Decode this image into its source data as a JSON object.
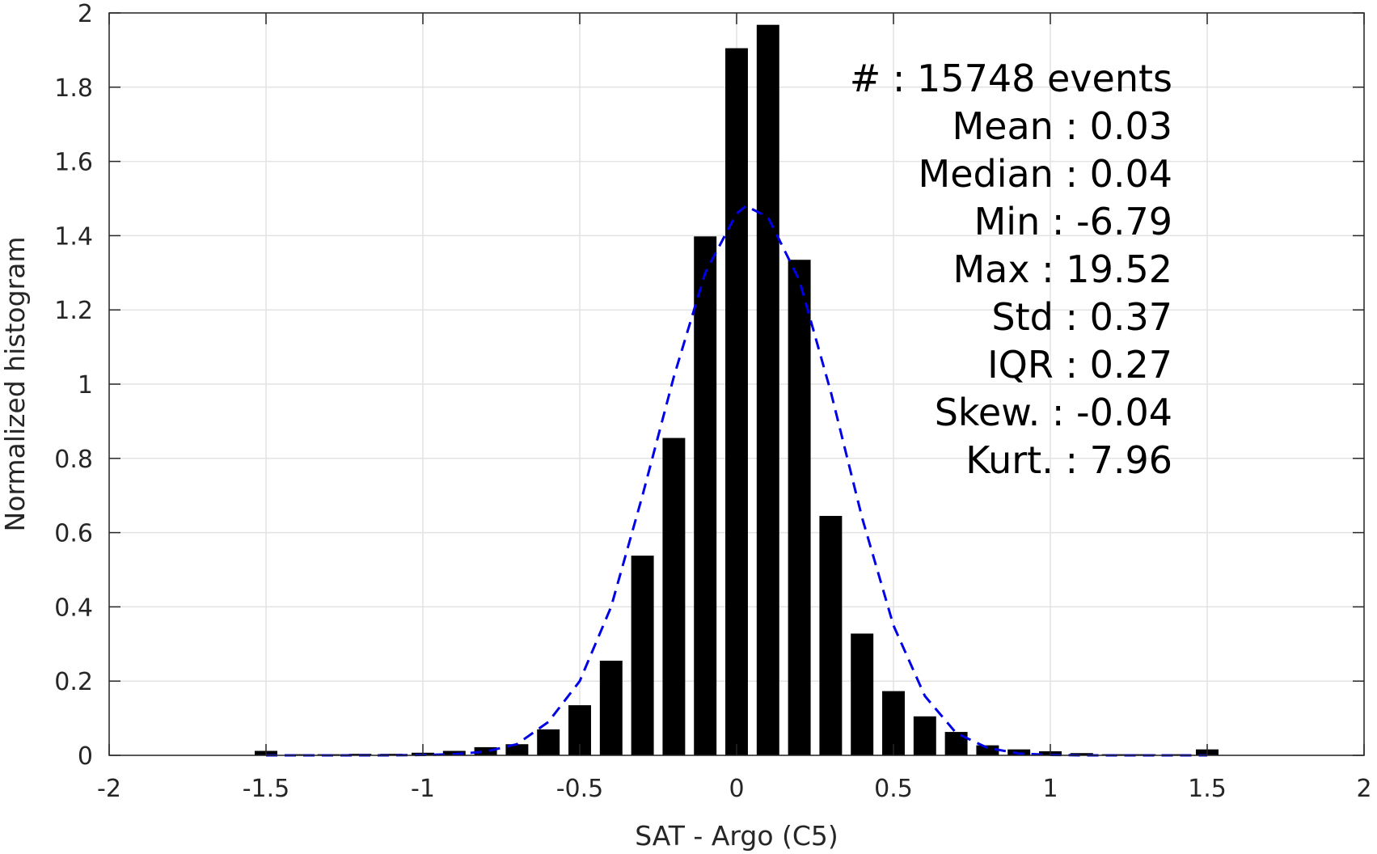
{
  "chart_data": {
    "type": "bar",
    "title": "",
    "xlabel": "SAT - Argo (C5)",
    "ylabel": "Normalized histogram",
    "xlim": [
      -2,
      2
    ],
    "ylim": [
      0,
      2
    ],
    "grid": true,
    "x_ticks": [
      "-2",
      "-1.5",
      "-1",
      "-0.5",
      "0",
      "0.5",
      "1",
      "1.5",
      "2"
    ],
    "y_ticks": [
      "0",
      "0.2",
      "0.4",
      "0.6",
      "0.8",
      "1",
      "1.2",
      "1.4",
      "1.6",
      "1.8",
      "2"
    ],
    "bar_color": "#000000",
    "bins": {
      "x": [
        -1.5,
        -1.4,
        -1.3,
        -1.2,
        -1.1,
        -1.0,
        -0.9,
        -0.8,
        -0.7,
        -0.6,
        -0.5,
        -0.4,
        -0.3,
        -0.2,
        -0.1,
        0.0,
        0.1,
        0.2,
        0.3,
        0.4,
        0.5,
        0.6,
        0.7,
        0.8,
        0.9,
        1.0,
        1.1,
        1.2,
        1.3,
        1.4,
        1.5
      ],
      "values": [
        0.012,
        0.003,
        0.003,
        0.004,
        0.004,
        0.007,
        0.012,
        0.022,
        0.03,
        0.07,
        0.135,
        0.255,
        0.538,
        0.855,
        1.398,
        1.905,
        1.968,
        1.335,
        0.645,
        0.328,
        0.173,
        0.105,
        0.063,
        0.027,
        0.016,
        0.011,
        0.006,
        0.003,
        0.003,
        0.003,
        0.016
      ]
    },
    "fit_curve": {
      "style": "dashed",
      "color": "#0000e6",
      "x": [
        -1.5,
        -1.4,
        -1.3,
        -1.2,
        -1.1,
        -1.0,
        -0.9,
        -0.8,
        -0.7,
        -0.6,
        -0.5,
        -0.4,
        -0.3,
        -0.2,
        -0.1,
        0.0,
        0.03,
        0.1,
        0.2,
        0.3,
        0.4,
        0.5,
        0.6,
        0.7,
        0.8,
        0.9,
        1.0,
        1.1,
        1.2,
        1.3,
        1.4,
        1.5
      ],
      "y": [
        0.0,
        0.0,
        0.0,
        0.0,
        0.0,
        0.001,
        0.003,
        0.01,
        0.03,
        0.09,
        0.2,
        0.4,
        0.7,
        1.02,
        1.3,
        1.46,
        1.48,
        1.45,
        1.28,
        0.98,
        0.64,
        0.35,
        0.16,
        0.06,
        0.02,
        0.005,
        0.001,
        0.0,
        0.0,
        0.0,
        0.0,
        0.0
      ]
    },
    "stats": [
      {
        "label": "#",
        "value": ": 15748 events"
      },
      {
        "label": "Mean",
        "value": ": 0.03"
      },
      {
        "label": "Median",
        "value": ": 0.04"
      },
      {
        "label": "Min",
        "value": ": -6.79"
      },
      {
        "label": "Max",
        "value": ": 19.52"
      },
      {
        "label": "Std",
        "value": ": 0.37"
      },
      {
        "label": "IQR",
        "value": ": 0.27"
      },
      {
        "label": "Skew.",
        "value": ": -0.04"
      },
      {
        "label": "Kurt.",
        "value": ": 7.96"
      }
    ]
  }
}
